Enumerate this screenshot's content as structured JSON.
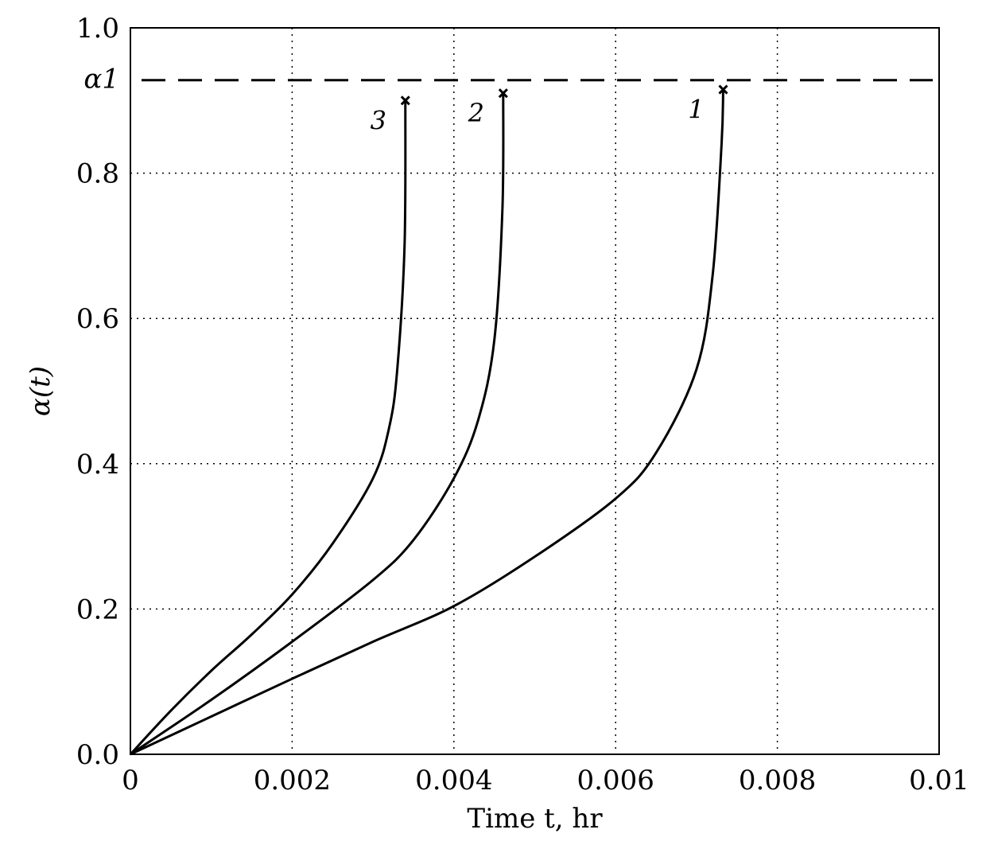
{
  "chart_data": {
    "type": "line",
    "xlabel": "Time t, hr",
    "ylabel": "α(t)",
    "xlim": [
      0,
      0.01
    ],
    "ylim": [
      0,
      1.0
    ],
    "x_ticks": [
      0,
      0.002,
      0.004,
      0.006,
      0.008,
      0.01
    ],
    "x_tick_labels": [
      "0",
      "0.002",
      "0.004",
      "0.006",
      "0.008",
      "0.01"
    ],
    "y_ticks": [
      0,
      0.2,
      0.4,
      0.6,
      0.8,
      1.0
    ],
    "y_tick_labels": [
      "0.0",
      "0.2",
      "0.4",
      "0.6",
      "0.8",
      "1.0"
    ],
    "grid": true,
    "threshold": {
      "label": "α1",
      "y": 0.928
    },
    "series": [
      {
        "label": "1",
        "x": [
          0,
          0.001,
          0.002,
          0.003,
          0.004,
          0.005,
          0.006,
          0.0065,
          0.007,
          0.0072,
          0.00731,
          0.00733
        ],
        "y": [
          0,
          0.052,
          0.104,
          0.155,
          0.204,
          0.272,
          0.352,
          0.415,
          0.53,
          0.66,
          0.84,
          0.915
        ]
      },
      {
        "label": "2",
        "x": [
          0,
          0.001,
          0.002,
          0.003,
          0.0035,
          0.004,
          0.0043,
          0.0045,
          0.0046,
          0.00461
        ],
        "y": [
          0,
          0.075,
          0.155,
          0.24,
          0.295,
          0.38,
          0.46,
          0.57,
          0.75,
          0.91
        ]
      },
      {
        "label": "3",
        "x": [
          0,
          0.0005,
          0.001,
          0.0015,
          0.002,
          0.0025,
          0.003,
          0.0032,
          0.0033,
          0.00339,
          0.0034
        ],
        "y": [
          0,
          0.06,
          0.115,
          0.165,
          0.22,
          0.29,
          0.38,
          0.45,
          0.53,
          0.7,
          0.9
        ]
      }
    ]
  }
}
